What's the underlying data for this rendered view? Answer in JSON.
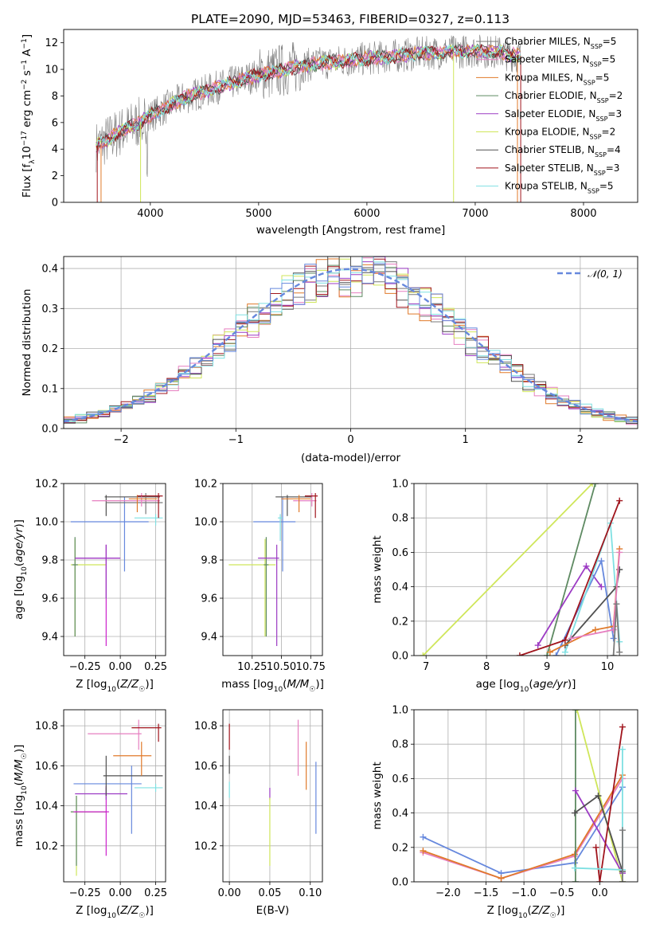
{
  "figure": {
    "title": "PLATE=2090, MJD=53463, FIBERID=0327, z=0.113"
  },
  "colors": {
    "Chabrier MILES": "#7a7a7a",
    "Salpeter MILES": "#e67fc0",
    "Kroupa MILES": "#e07a2a",
    "Chabrier ELODIE": "#5e8a62",
    "Salpeter ELODIE": "#9c3bc4",
    "Kroupa ELODIE": "#cfe65a",
    "Chabrier STELIB": "#505050",
    "Salpeter STELIB": "#a0141c",
    "Kroupa STELIB": "#7fe0e2",
    "blue": "#6688dd",
    "magenta": "#cc22cc",
    "grey_noise": "#808080"
  },
  "chart_data": [
    {
      "id": "spectrum",
      "type": "line",
      "xlabel": "wavelength [Angstrom, rest frame]",
      "ylabel": "Flux [f_λ10^-17 erg cm^-2 s^-1 A^-1]",
      "xlim": [
        3200,
        8500
      ],
      "ylim": [
        0,
        13
      ],
      "xticks": [
        "4000",
        "5000",
        "6000",
        "7000",
        "8000"
      ],
      "yticks": [
        "0",
        "2",
        "4",
        "6",
        "8",
        "10",
        "12"
      ],
      "grid": false,
      "legend_position": "upper-right",
      "legend": [
        {
          "name": "Chabrier MILES",
          "nssp": "5"
        },
        {
          "name": "Salpeter MILES",
          "nssp": "5"
        },
        {
          "name": "Kroupa MILES",
          "nssp": "5"
        },
        {
          "name": "Chabrier ELODIE",
          "nssp": "2"
        },
        {
          "name": "Salpeter ELODIE",
          "nssp": "3"
        },
        {
          "name": "Kroupa ELODIE",
          "nssp": "2"
        },
        {
          "name": "Chabrier STELIB",
          "nssp": "4"
        },
        {
          "name": "Salpeter STELIB",
          "nssp": "3"
        },
        {
          "name": "Kroupa STELIB",
          "nssp": "5"
        }
      ],
      "data_trend": {
        "x": [
          3500,
          3700,
          3900,
          4000,
          4300,
          4600,
          5000,
          5500,
          6000,
          6500,
          7000,
          7200,
          7400
        ],
        "y": [
          4.2,
          5.2,
          6.0,
          6.5,
          7.8,
          8.6,
          9.6,
          10.4,
          10.8,
          11.2,
          11.4,
          11.3,
          11.0
        ]
      }
    },
    {
      "id": "residuals",
      "type": "step",
      "xlabel": "(data-model)/error",
      "ylabel": "Normed distribution",
      "xlim": [
        -2.5,
        2.5
      ],
      "ylim": [
        0,
        0.43
      ],
      "xticks": [
        "−2",
        "−1",
        "0",
        "1",
        "2"
      ],
      "yticks": [
        "0.0",
        "0.1",
        "0.2",
        "0.3",
        "0.4"
      ],
      "grid": true,
      "legend_position": "upper-right",
      "legend": [
        {
          "name": "𝒩(0, 1)"
        }
      ],
      "bin_width": 0.1
    },
    {
      "id": "age-vs-Z",
      "type": "errorbar",
      "xlabel": "Z [log10(Z/Z☉)]",
      "ylabel": "age  [log10(age/yr)]",
      "xlim": [
        -0.4,
        0.32
      ],
      "ylim": [
        9.3,
        10.2
      ],
      "xticks": [
        "−0.25",
        "0.00",
        "0.25"
      ],
      "yticks": [
        "9.4",
        "9.6",
        "9.8",
        "10.0",
        "10.2"
      ],
      "grid": true,
      "points": [
        {
          "c": "Kroupa ELODIE",
          "x": -0.32,
          "y": 9.775,
          "xl": -0.35,
          "xh": -0.1,
          "yl": 9.4,
          "yh": 9.91
        },
        {
          "c": "Chabrier ELODIE",
          "x": -0.32,
          "y": 9.775,
          "xl": -0.34,
          "xh": -0.3,
          "yl": 9.4,
          "yh": 9.92
        },
        {
          "c": "magenta",
          "x": -0.1,
          "y": 9.81,
          "xl": -0.32,
          "xh": 0.0,
          "yl": 9.35,
          "yh": 9.88
        },
        {
          "c": "Salpeter ELODIE",
          "x": -0.1,
          "y": 9.81,
          "xl": -0.32,
          "xh": 0.0,
          "yl": 9.6,
          "yh": 9.88
        },
        {
          "c": "blue",
          "x": 0.03,
          "y": 10.0,
          "xl": -0.35,
          "xh": 0.2,
          "yl": 9.74,
          "yh": 10.13
        },
        {
          "c": "Chabrier STELIB",
          "x": -0.1,
          "y": 10.13,
          "xl": -0.11,
          "xh": 0.28,
          "yl": 10.03,
          "yh": 10.14
        },
        {
          "c": "Chabrier MILES",
          "x": 0.18,
          "y": 10.1,
          "xl": -0.1,
          "xh": 0.3,
          "yl": 10.04,
          "yh": 10.15
        },
        {
          "c": "Salpeter MILES",
          "x": 0.15,
          "y": 10.11,
          "xl": -0.2,
          "xh": 0.28,
          "yl": 10.08,
          "yh": 10.15
        },
        {
          "c": "Kroupa MILES",
          "x": 0.12,
          "y": 10.12,
          "xl": 0.06,
          "xh": 0.26,
          "yl": 10.05,
          "yh": 10.14
        },
        {
          "c": "Kroupa STELIB",
          "x": 0.25,
          "y": 10.02,
          "xl": 0.1,
          "xh": 0.3,
          "yl": 9.98,
          "yh": 10.04
        },
        {
          "c": "Salpeter STELIB",
          "x": 0.27,
          "y": 10.135,
          "xl": 0.12,
          "xh": 0.3,
          "yl": 10.02,
          "yh": 10.15
        }
      ]
    },
    {
      "id": "age-vs-mass",
      "type": "errorbar",
      "xlabel": "mass [log10(M/M☉)]",
      "ylabel": "",
      "xlim": [
        10.0,
        10.85
      ],
      "ylim": [
        9.3,
        10.2
      ],
      "xticks": [
        "10.25",
        "10.50",
        "10.75"
      ],
      "yticks": [
        "9.4",
        "9.6",
        "9.8",
        "10.0",
        "10.2"
      ],
      "grid": true,
      "points": [
        {
          "c": "Kroupa ELODIE",
          "x": 10.36,
          "y": 9.775,
          "xl": 10.05,
          "xh": 10.45,
          "yl": 9.4,
          "yh": 9.91
        },
        {
          "c": "Chabrier ELODIE",
          "x": 10.37,
          "y": 9.775,
          "xl": 10.35,
          "xh": 10.39,
          "yl": 9.4,
          "yh": 9.92
        },
        {
          "c": "Salpeter ELODIE",
          "x": 10.46,
          "y": 9.81,
          "xl": 10.3,
          "xh": 10.48,
          "yl": 9.35,
          "yh": 9.88
        },
        {
          "c": "blue",
          "x": 10.51,
          "y": 10.0,
          "xl": 10.26,
          "xh": 10.62,
          "yl": 9.74,
          "yh": 10.13
        },
        {
          "c": "Kroupa STELIB",
          "x": 10.49,
          "y": 10.02,
          "xl": 10.47,
          "xh": 10.51,
          "yl": 9.9,
          "yh": 10.04
        },
        {
          "c": "Chabrier STELIB",
          "x": 10.55,
          "y": 10.13,
          "xl": 10.45,
          "xh": 10.76,
          "yl": 10.03,
          "yh": 10.14
        },
        {
          "c": "Salpeter MILES",
          "x": 10.76,
          "y": 10.11,
          "xl": 10.6,
          "xh": 10.8,
          "yl": 10.08,
          "yh": 10.15
        },
        {
          "c": "Kroupa MILES",
          "x": 10.65,
          "y": 10.12,
          "xl": 10.5,
          "xh": 10.75,
          "yl": 10.05,
          "yh": 10.14
        },
        {
          "c": "Salpeter STELIB",
          "x": 10.79,
          "y": 10.135,
          "xl": 10.7,
          "xh": 10.81,
          "yl": 10.02,
          "yh": 10.15
        }
      ]
    },
    {
      "id": "weight-vs-age",
      "type": "line",
      "xlabel": "age  [log10(age/yr)]",
      "ylabel": "mass weight",
      "xlim": [
        6.8,
        10.5
      ],
      "ylim": [
        0,
        1
      ],
      "xticks": [
        "7",
        "8",
        "9",
        "10"
      ],
      "yticks": [
        "0.0",
        "0.2",
        "0.4",
        "0.6",
        "0.8",
        "1.0"
      ],
      "grid": true,
      "series": [
        {
          "c": "Kroupa ELODIE",
          "x": [
            6.95,
            9.75
          ],
          "y": [
            0.0,
            1.0
          ]
        },
        {
          "c": "Chabrier ELODIE",
          "x": [
            9.0,
            9.8
          ],
          "y": [
            0.0,
            1.0
          ]
        },
        {
          "c": "Salpeter ELODIE",
          "x": [
            8.85,
            9.65,
            9.9
          ],
          "y": [
            0.06,
            0.52,
            0.4
          ]
        },
        {
          "c": "blue",
          "x": [
            9.15,
            9.9,
            10.1
          ],
          "y": [
            0.0,
            0.55,
            0.1
          ]
        },
        {
          "c": "Kroupa STELIB",
          "x": [
            9.3,
            10.05,
            10.2
          ],
          "y": [
            0.02,
            0.77,
            0.08
          ]
        },
        {
          "c": "Chabrier STELIB",
          "x": [
            9.3,
            10.15,
            10.2
          ],
          "y": [
            0.06,
            0.4,
            0.5
          ]
        },
        {
          "c": "Salpeter STELIB",
          "x": [
            8.55,
            9.3,
            10.2
          ],
          "y": [
            0.0,
            0.09,
            0.9
          ]
        },
        {
          "c": "Kroupa MILES",
          "x": [
            9.05,
            9.8,
            10.1,
            10.2
          ],
          "y": [
            0.02,
            0.15,
            0.17,
            0.62
          ]
        },
        {
          "c": "Salpeter MILES",
          "x": [
            9.4,
            10.1,
            10.2
          ],
          "y": [
            0.1,
            0.15,
            0.6
          ]
        },
        {
          "c": "Chabrier MILES",
          "x": [
            10.1,
            10.15,
            10.2
          ],
          "y": [
            0.0,
            0.3,
            0.02
          ]
        }
      ]
    },
    {
      "id": "mass-vs-Z",
      "type": "errorbar",
      "xlabel": "Z [log10(Z/Z☉)]",
      "ylabel": "mass [log10(M/M☉)]",
      "xlim": [
        -0.4,
        0.32
      ],
      "ylim": [
        10.02,
        10.88
      ],
      "xticks": [
        "−0.25",
        "0.00",
        "0.25"
      ],
      "yticks": [
        "10.2",
        "10.4",
        "10.6",
        "10.8"
      ],
      "grid": true,
      "points": [
        {
          "c": "Kroupa ELODIE",
          "x": -0.31,
          "y": 10.37,
          "xl": -0.35,
          "xh": -0.1,
          "yl": 10.05,
          "yh": 10.45
        },
        {
          "c": "Chabrier ELODIE",
          "x": -0.31,
          "y": 10.37,
          "xl": -0.35,
          "xh": -0.1,
          "yl": 10.1,
          "yh": 10.45
        },
        {
          "c": "magenta",
          "x": -0.1,
          "y": 10.37,
          "xl": -0.33,
          "xh": -0.08,
          "yl": 10.15,
          "yh": 10.5
        },
        {
          "c": "Salpeter ELODIE",
          "x": -0.1,
          "y": 10.46,
          "xl": -0.32,
          "xh": 0.05,
          "yl": 10.43,
          "yh": 10.49
        },
        {
          "c": "blue",
          "x": 0.08,
          "y": 10.51,
          "xl": -0.33,
          "xh": 0.15,
          "yl": 10.26,
          "yh": 10.6
        },
        {
          "c": "Chabrier STELIB",
          "x": -0.1,
          "y": 10.55,
          "xl": -0.12,
          "xh": 0.3,
          "yl": 10.45,
          "yh": 10.65
        },
        {
          "c": "Kroupa STELIB",
          "x": 0.25,
          "y": 10.49,
          "xl": 0.1,
          "xh": 0.3,
          "yl": 10.47,
          "yh": 10.51
        },
        {
          "c": "Kroupa MILES",
          "x": 0.15,
          "y": 10.65,
          "xl": -0.05,
          "xh": 0.22,
          "yl": 10.55,
          "yh": 10.72
        },
        {
          "c": "Salpeter MILES",
          "x": 0.13,
          "y": 10.76,
          "xl": -0.23,
          "xh": 0.15,
          "yl": 10.68,
          "yh": 10.83
        },
        {
          "c": "Salpeter STELIB",
          "x": 0.27,
          "y": 10.79,
          "xl": 0.08,
          "xh": 0.29,
          "yl": 10.72,
          "yh": 10.81
        }
      ]
    },
    {
      "id": "mass-vs-ebv",
      "type": "errorbar",
      "xlabel": "E(B-V)",
      "ylabel": "",
      "xlim": [
        -0.008,
        0.115
      ],
      "ylim": [
        10.02,
        10.88
      ],
      "xticks": [
        "0.00",
        "0.05",
        "0.10"
      ],
      "yticks": [
        "10.2",
        "10.4",
        "10.6",
        "10.8"
      ],
      "grid": true,
      "points": [
        {
          "c": "Salpeter STELIB",
          "x": 0.0,
          "y": 10.75,
          "xl": 0.0,
          "xh": 0.0,
          "yl": 10.68,
          "yh": 10.81
        },
        {
          "c": "Chabrier STELIB",
          "x": 0.0,
          "y": 10.6,
          "xl": 0.0,
          "xh": 0.0,
          "yl": 10.56,
          "yh": 10.65
        },
        {
          "c": "Kroupa STELIB",
          "x": 0.0,
          "y": 10.49,
          "xl": 0.0,
          "xh": 0.0,
          "yl": 10.44,
          "yh": 10.52
        },
        {
          "c": "Salpeter ELODIE",
          "x": 0.05,
          "y": 10.46,
          "xl": 0.05,
          "xh": 0.05,
          "yl": 10.43,
          "yh": 10.49
        },
        {
          "c": "Kroupa ELODIE",
          "x": 0.05,
          "y": 10.3,
          "xl": 0.05,
          "xh": 0.05,
          "yl": 10.1,
          "yh": 10.44
        },
        {
          "c": "Salpeter MILES",
          "x": 0.085,
          "y": 10.7,
          "xl": 0.085,
          "xh": 0.085,
          "yl": 10.55,
          "yh": 10.83
        },
        {
          "c": "Kroupa MILES",
          "x": 0.095,
          "y": 10.65,
          "xl": 0.095,
          "xh": 0.095,
          "yl": 10.48,
          "yh": 10.72
        },
        {
          "c": "blue",
          "x": 0.107,
          "y": 10.5,
          "xl": 0.107,
          "xh": 0.107,
          "yl": 10.26,
          "yh": 10.62
        }
      ]
    },
    {
      "id": "weight-vs-Z",
      "type": "line",
      "xlabel": "Z [log10(Z/Z☉)]",
      "ylabel": "mass weight",
      "xlim": [
        -2.45,
        0.5
      ],
      "ylim": [
        0,
        1
      ],
      "xticks": [
        "−2.0",
        "−1.5",
        "−1.0",
        "−0.5",
        "0.0"
      ],
      "yticks": [
        "0.0",
        "0.2",
        "0.4",
        "0.6",
        "0.8",
        "1.0"
      ],
      "grid": true,
      "series": [
        {
          "c": "blue",
          "x": [
            -2.33,
            -1.3,
            -0.33,
            0.3
          ],
          "y": [
            0.26,
            0.05,
            0.11,
            0.55
          ]
        },
        {
          "c": "Salpeter MILES",
          "x": [
            -2.33,
            -1.3,
            -0.33,
            0.3
          ],
          "y": [
            0.17,
            0.02,
            0.15,
            0.6
          ]
        },
        {
          "c": "Kroupa MILES",
          "x": [
            -2.33,
            -1.3,
            -0.33,
            0.3
          ],
          "y": [
            0.18,
            0.02,
            0.16,
            0.62
          ]
        },
        {
          "c": "Kroupa ELODIE",
          "x": [
            -0.3,
            0.3
          ],
          "y": [
            1.0,
            0.0
          ]
        },
        {
          "c": "Chabrier ELODIE",
          "x": [
            -0.32,
            -0.32
          ],
          "y": [
            0.0,
            1.0
          ]
        },
        {
          "c": "Salpeter ELODIE",
          "x": [
            -0.32,
            0.3
          ],
          "y": [
            0.53,
            0.05
          ]
        },
        {
          "c": "Chabrier STELIB",
          "x": [
            -0.33,
            -0.02,
            0.3
          ],
          "y": [
            0.4,
            0.5,
            0.06
          ]
        },
        {
          "c": "Salpeter STELIB",
          "x": [
            -0.05,
            0.0,
            0.3
          ],
          "y": [
            0.2,
            0.0,
            0.9
          ]
        },
        {
          "c": "Kroupa STELIB",
          "x": [
            -0.33,
            0.3,
            0.3
          ],
          "y": [
            0.08,
            0.07,
            0.77
          ]
        },
        {
          "c": "Chabrier MILES",
          "x": [
            0.3,
            0.3
          ],
          "y": [
            0.0,
            0.3
          ]
        }
      ]
    }
  ]
}
